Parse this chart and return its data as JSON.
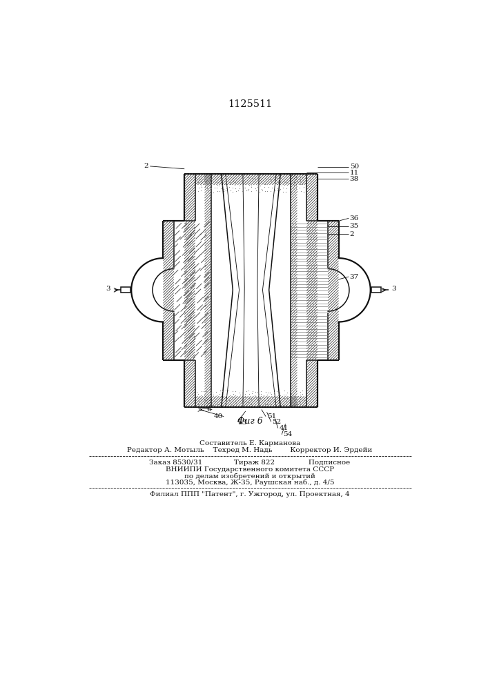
{
  "title": "1125511",
  "fig_label": "Фиг 6",
  "footer_lines": [
    "Составитель Е. Карманова",
    "Редактор А. Мотыль    Техред М. Надь        Корректор И. Эрдейи",
    "Заказ 8530/31              Тираж 822               Подписное",
    "ВНИИПИ Государственного комитета СССР",
    "по делам изобретений и открытий",
    "113035, Москва, Ж-35, Раушская наб., д. 4/5",
    "Филиал ППП \"Патент\", г. Ужгород, ул. Проектная, 4"
  ],
  "lc": "#111111",
  "lw_thick": 1.6,
  "lw_mid": 1.1,
  "lw_thin": 0.65
}
